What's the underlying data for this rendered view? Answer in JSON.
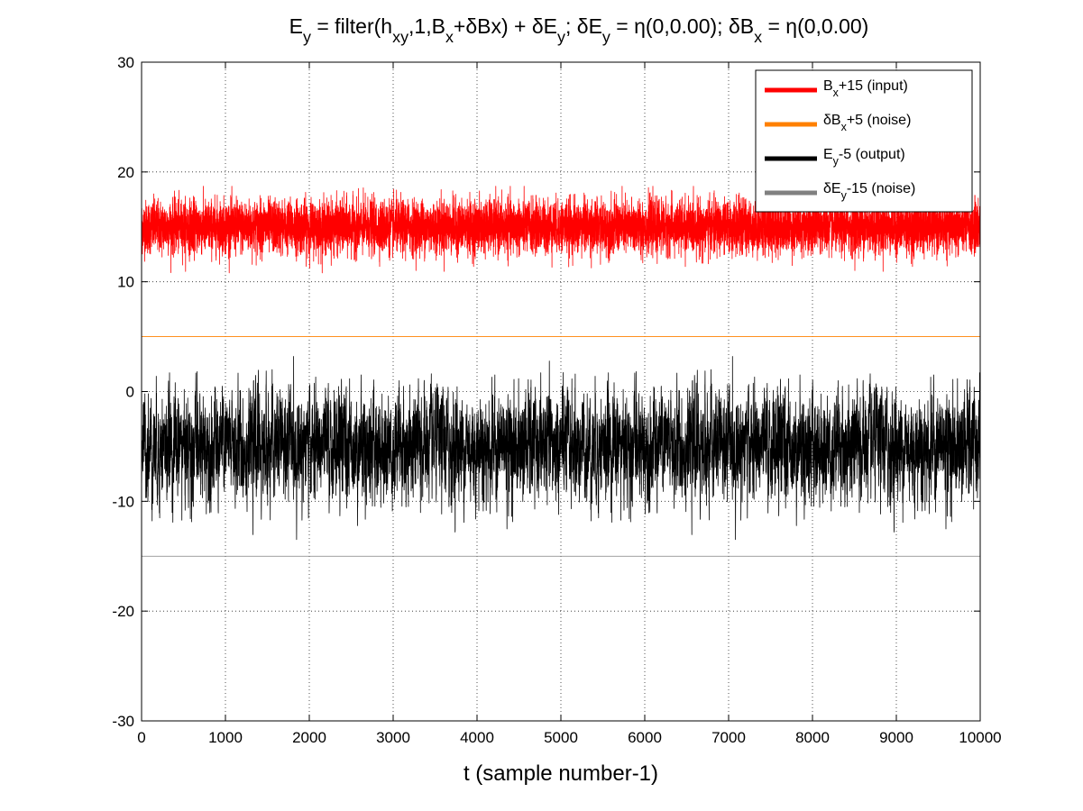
{
  "chart_data": {
    "type": "line",
    "title": {
      "segments": [
        {
          "t": "E"
        },
        {
          "t": "y",
          "sub": true
        },
        {
          "t": " = filter(h"
        },
        {
          "t": "xy",
          "sub": true
        },
        {
          "t": ",1,B"
        },
        {
          "t": "x",
          "sub": true
        },
        {
          "t": "+δBx) + δE"
        },
        {
          "t": "y",
          "sub": true
        },
        {
          "t": "; δE"
        },
        {
          "t": "y",
          "sub": true
        },
        {
          "t": " = η(0,0.00); δB"
        },
        {
          "t": "x",
          "sub": true
        },
        {
          "t": " = η(0,0.00)"
        }
      ]
    },
    "xlabel": "t (sample number-1)",
    "ylabel": "",
    "xlim": [
      0,
      10000
    ],
    "ylim": [
      -30,
      30
    ],
    "xticks": [
      "0",
      "1000",
      "2000",
      "3000",
      "4000",
      "5000",
      "6000",
      "7000",
      "8000",
      "9000",
      "10000"
    ],
    "yticks": [
      "-30",
      "-20",
      "-10",
      "0",
      "10",
      "20",
      "30"
    ],
    "grid": true,
    "legend_position": "top-right",
    "series": [
      {
        "legend": [
          {
            "t": "B"
          },
          {
            "t": "x",
            "sub": true
          },
          {
            "t": "+15 (input)"
          }
        ],
        "color": "#ff0000",
        "kind": "noise",
        "mean": 15,
        "std": 1.2,
        "samples": 10000,
        "ar": 0.0,
        "min": 10.8,
        "max": 18.7
      },
      {
        "legend": [
          {
            "t": "δB"
          },
          {
            "t": "x",
            "sub": true
          },
          {
            "t": "+5 (noise)"
          }
        ],
        "color": "#ff8000",
        "kind": "constant",
        "value": 5
      },
      {
        "legend": [
          {
            "t": "E"
          },
          {
            "t": "y",
            "sub": true
          },
          {
            "t": "-5 (output)"
          }
        ],
        "color": "#000000",
        "kind": "noise",
        "mean": -5,
        "std": 2.4,
        "samples": 10000,
        "ar": 0.6,
        "min": -15,
        "max": 3.2
      },
      {
        "legend": [
          {
            "t": "δE"
          },
          {
            "t": "y",
            "sub": true
          },
          {
            "t": "-15 (noise)"
          }
        ],
        "color": "#808080",
        "kind": "constant",
        "value": -15
      }
    ]
  }
}
